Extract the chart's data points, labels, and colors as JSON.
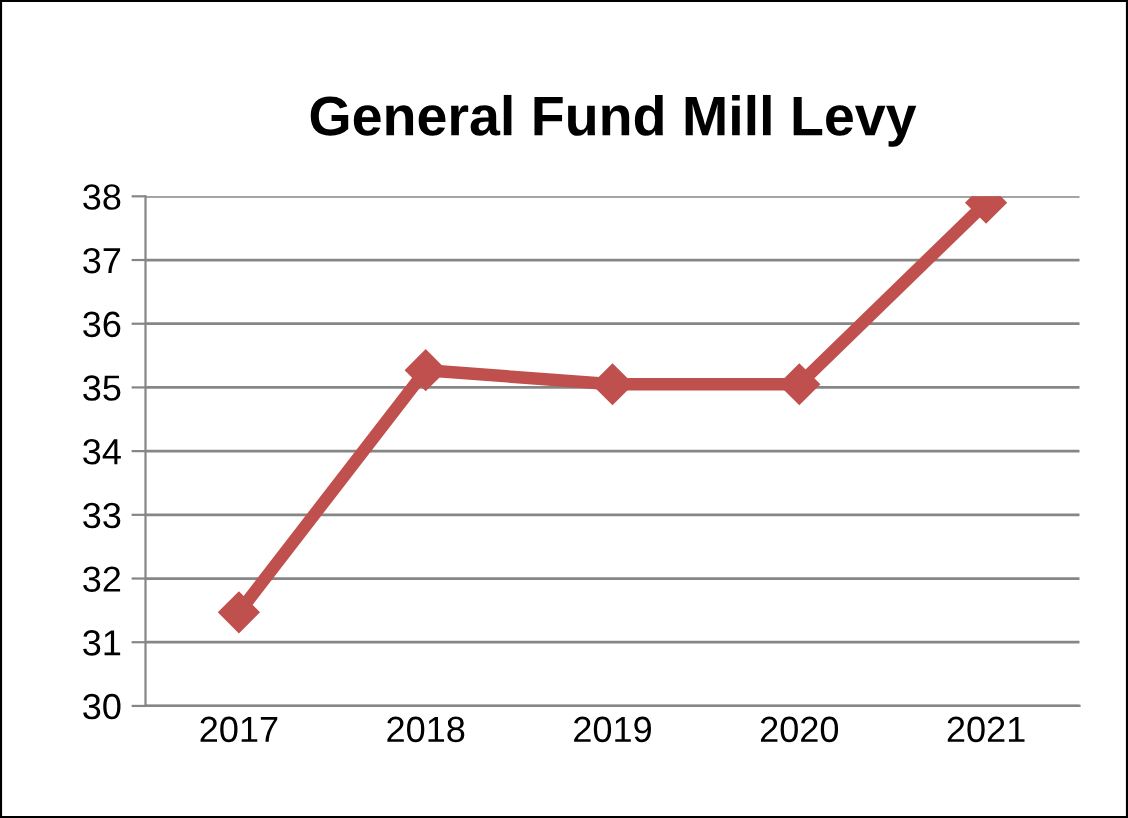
{
  "chart_data": {
    "type": "line",
    "title": "General Fund Mill Levy",
    "categories": [
      "2017",
      "2018",
      "2019",
      "2020",
      "2021"
    ],
    "series": [
      {
        "color": "#c0504d",
        "values": [
          31.47,
          35.27,
          35.05,
          35.05,
          37.9
        ]
      }
    ],
    "ylim": [
      30,
      38
    ],
    "yticks": [
      30,
      31,
      32,
      33,
      34,
      35,
      36,
      37,
      38
    ],
    "grid": "y",
    "marker": "diamond",
    "line_style": "solid"
  }
}
